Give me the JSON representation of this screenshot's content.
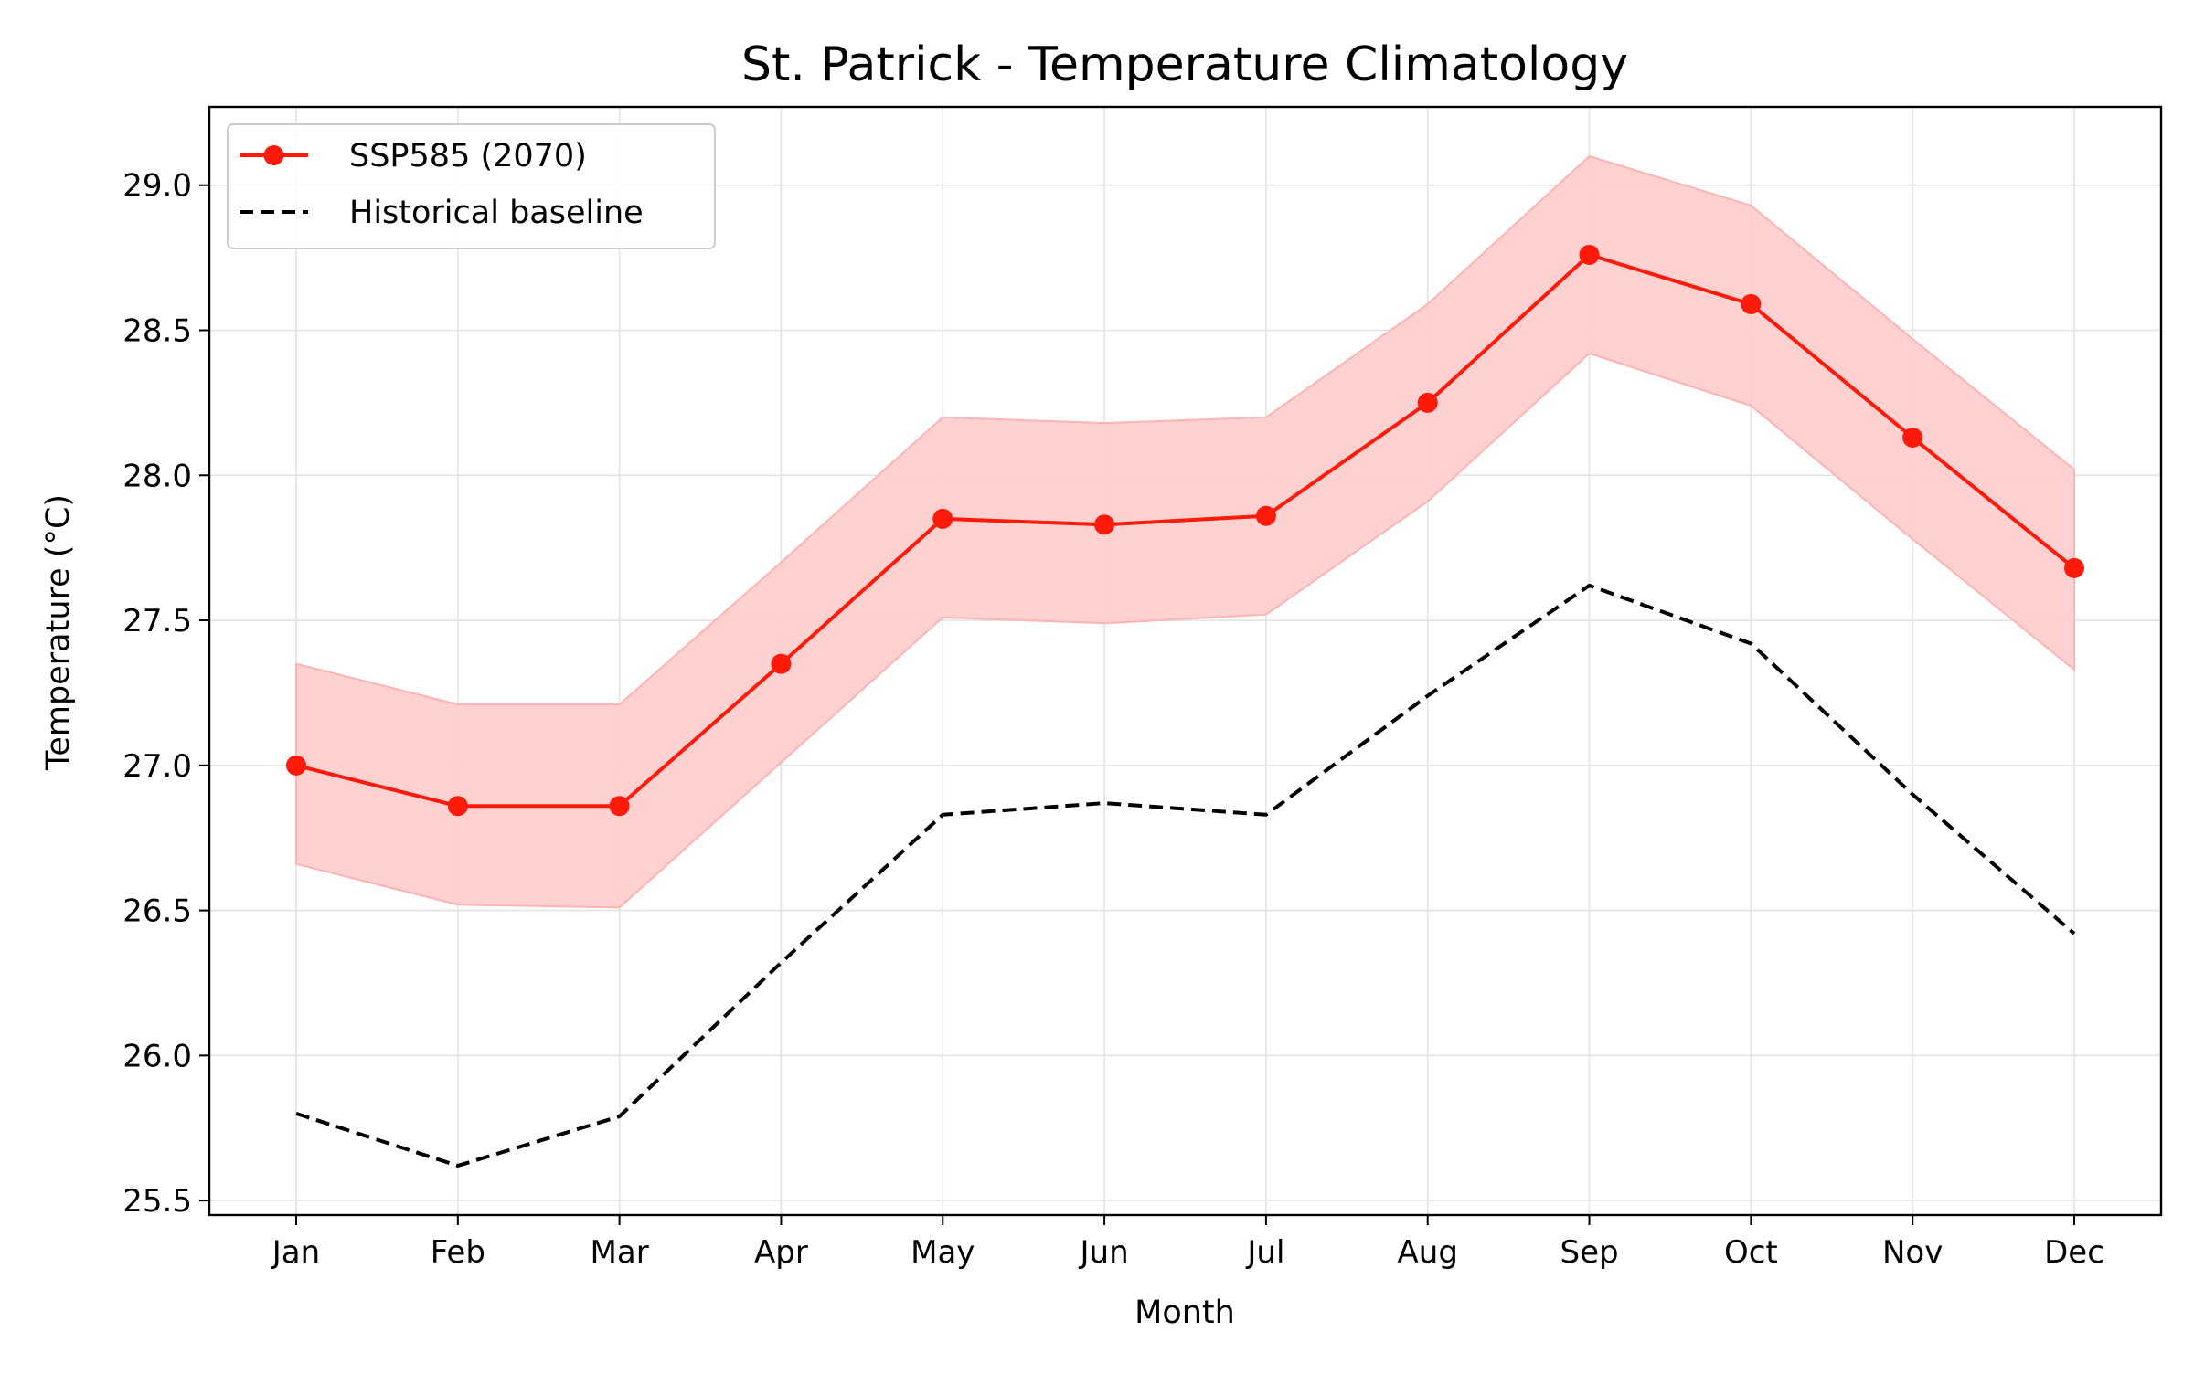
{
  "chart_data": {
    "type": "line",
    "title": "St. Patrick - Temperature Climatology",
    "xlabel": "Month",
    "ylabel": "Temperature (°C)",
    "categories": [
      "Jan",
      "Feb",
      "Mar",
      "Apr",
      "May",
      "Jun",
      "Jul",
      "Aug",
      "Sep",
      "Oct",
      "Nov",
      "Dec"
    ],
    "ylim": [
      25.45,
      29.27
    ],
    "yticks": [
      "25.5",
      "26.0",
      "26.5",
      "27.0",
      "27.5",
      "28.0",
      "28.5",
      "29.0"
    ],
    "grid": true,
    "legend_position": "top-left",
    "series": [
      {
        "name": "SSP585 (2070)",
        "style": "solid-with-markers",
        "color": "#ff1a0a",
        "values": [
          27.0,
          26.86,
          26.86,
          27.35,
          27.85,
          27.83,
          27.86,
          28.25,
          28.76,
          28.59,
          28.13,
          27.68
        ],
        "band_lower": [
          26.66,
          26.52,
          26.51,
          27.01,
          27.51,
          27.49,
          27.52,
          27.91,
          28.42,
          28.24,
          27.78,
          27.33
        ],
        "band_upper": [
          27.35,
          27.21,
          27.21,
          27.7,
          28.2,
          28.18,
          28.2,
          28.59,
          29.1,
          28.93,
          28.47,
          28.02
        ],
        "band_color": "#ffcccc"
      },
      {
        "name": "Historical baseline",
        "style": "dashed",
        "color": "#000000",
        "values": [
          25.8,
          25.62,
          25.79,
          26.32,
          26.83,
          26.87,
          26.83,
          27.24,
          27.62,
          27.42,
          26.9,
          26.42
        ]
      }
    ]
  }
}
